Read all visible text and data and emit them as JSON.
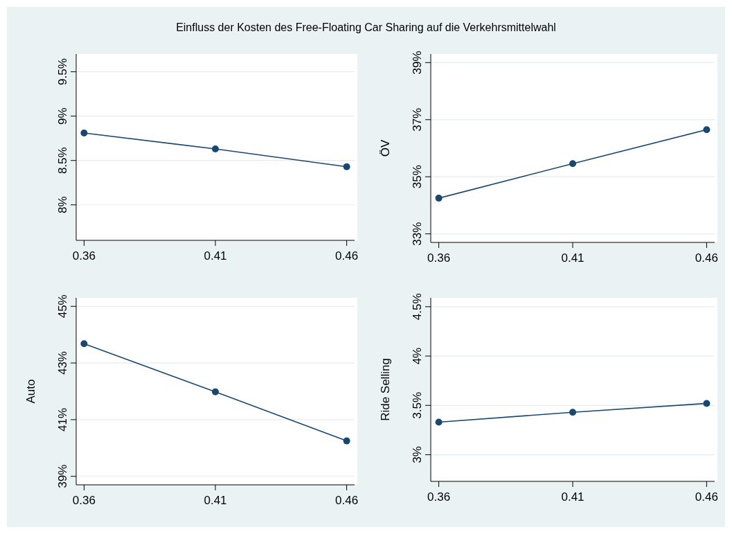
{
  "chart_data": [
    {
      "type": "line",
      "title": "Einfluss der Kosten des Free-Floating Car Sharing auf die Verkehrsmittelwahl",
      "x": [
        0.36,
        0.41,
        0.46
      ],
      "series": [
        {
          "color": "#1a476f",
          "values": [
            8.81,
            8.63,
            8.43
          ]
        }
      ],
      "xlim": [
        0.357,
        0.463
      ],
      "xticks": [
        0.36,
        0.41,
        0.46
      ],
      "ylim": [
        7.6,
        9.7
      ],
      "yticks": [
        {
          "value": 8,
          "label": "8%"
        },
        {
          "value": 8.5,
          "label": "8.5%"
        },
        {
          "value": 9,
          "label": "9%"
        },
        {
          "value": 9.5,
          "label": "9.5%"
        }
      ],
      "grid": "y",
      "marker": "circle"
    },
    {
      "type": "line",
      "ylabel": "ÖV",
      "x": [
        0.36,
        0.41,
        0.46
      ],
      "series": [
        {
          "color": "#1a476f",
          "values": [
            34.25,
            35.46,
            36.65
          ]
        }
      ],
      "xlim": [
        0.357,
        0.463
      ],
      "xticks": [
        0.36,
        0.41,
        0.46
      ],
      "ylim": [
        32.7,
        39.3
      ],
      "yticks": [
        {
          "value": 33,
          "label": "33%"
        },
        {
          "value": 35,
          "label": "35%"
        },
        {
          "value": 37,
          "label": "37%"
        },
        {
          "value": 39,
          "label": "39%"
        }
      ],
      "grid": "y",
      "marker": "circle"
    },
    {
      "type": "line",
      "ylabel": "Auto",
      "x": [
        0.36,
        0.41,
        0.46
      ],
      "series": [
        {
          "color": "#1a476f",
          "values": [
            43.68,
            41.98,
            40.25
          ]
        }
      ],
      "xlim": [
        0.357,
        0.463
      ],
      "xticks": [
        0.36,
        0.41,
        0.46
      ],
      "ylim": [
        38.7,
        45.3
      ],
      "yticks": [
        {
          "value": 39,
          "label": "39%"
        },
        {
          "value": 41,
          "label": "41%"
        },
        {
          "value": 43,
          "label": "43%"
        },
        {
          "value": 45,
          "label": "45%"
        }
      ],
      "grid": "y",
      "marker": "circle"
    },
    {
      "type": "line",
      "ylabel": "Ride Selling",
      "x": [
        0.36,
        0.41,
        0.46
      ],
      "series": [
        {
          "color": "#1a476f",
          "values": [
            3.33,
            3.43,
            3.52
          ]
        }
      ],
      "xlim": [
        0.357,
        0.463
      ],
      "xticks": [
        0.36,
        0.41,
        0.46
      ],
      "ylim": [
        2.73,
        4.59
      ],
      "yticks": [
        {
          "value": 3,
          "label": "3%"
        },
        {
          "value": 3.5,
          "label": "3.5%"
        },
        {
          "value": 4,
          "label": "4%"
        },
        {
          "value": 4.5,
          "label": "4.5%"
        }
      ],
      "grid": "y",
      "marker": "circle"
    }
  ]
}
